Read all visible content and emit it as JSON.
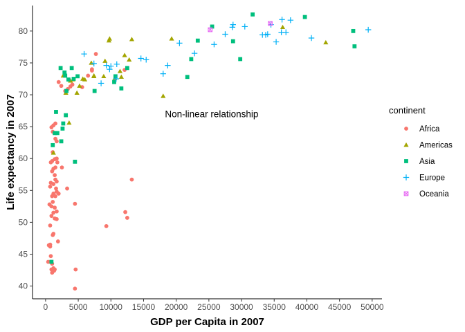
{
  "chart_data": {
    "type": "scatter",
    "xlabel": "GDP per Capita in 2007",
    "ylabel": "Life expectancy in 2007",
    "xlim": [
      -2000,
      51500
    ],
    "ylim": [
      38,
      84
    ],
    "xticks": [
      0,
      5000,
      10000,
      15000,
      20000,
      25000,
      30000,
      35000,
      40000,
      45000,
      50000
    ],
    "yticks": [
      40,
      45,
      50,
      55,
      60,
      65,
      70,
      75,
      80
    ],
    "grid": false,
    "legend": {
      "title": "continent",
      "placement": "right"
    },
    "annotations": [
      {
        "text": "Non-linear relationship",
        "x": 17800,
        "y": 67
      }
    ],
    "series": [
      {
        "name": "Africa",
        "shape": "circle",
        "color": "#F8766D",
        "points": [
          [
            1400,
            42.6
          ],
          [
            1000,
            43.5
          ],
          [
            400,
            43.8
          ],
          [
            500,
            46.4
          ],
          [
            700,
            46.2
          ],
          [
            700,
            46.5
          ],
          [
            1200,
            42.8
          ],
          [
            4600,
            42.6
          ],
          [
            4500,
            39.6
          ],
          [
            1000,
            42.1
          ],
          [
            1100,
            42.4
          ],
          [
            900,
            42.6
          ],
          [
            1300,
            42.4
          ],
          [
            800,
            44.7
          ],
          [
            1900,
            47.0
          ],
          [
            1100,
            48.0
          ],
          [
            1200,
            48.2
          ],
          [
            700,
            49.5
          ],
          [
            1400,
            50.6
          ],
          [
            1700,
            50.5
          ],
          [
            900,
            51.0
          ],
          [
            1200,
            51.5
          ],
          [
            1700,
            51.7
          ],
          [
            600,
            52.8
          ],
          [
            900,
            52.5
          ],
          [
            4500,
            52.9
          ],
          [
            12200,
            51.6
          ],
          [
            12500,
            50.7
          ],
          [
            9300,
            49.4
          ],
          [
            1000,
            54.1
          ],
          [
            1200,
            54.5
          ],
          [
            1500,
            54.1
          ],
          [
            1700,
            54.8
          ],
          [
            1600,
            55.3
          ],
          [
            2000,
            54.5
          ],
          [
            3300,
            55.3
          ],
          [
            1400,
            52.3
          ],
          [
            1100,
            53.2
          ],
          [
            13200,
            56.7
          ],
          [
            700,
            55.6
          ],
          [
            800,
            56.2
          ],
          [
            1200,
            56.0
          ],
          [
            1500,
            56.7
          ],
          [
            1700,
            56.4
          ],
          [
            1400,
            57.4
          ],
          [
            1000,
            58.0
          ],
          [
            1200,
            58.4
          ],
          [
            1500,
            58.6
          ],
          [
            2500,
            58.6
          ],
          [
            1800,
            59.4
          ],
          [
            800,
            59.4
          ],
          [
            1000,
            59.6
          ],
          [
            1400,
            59.9
          ],
          [
            1700,
            60.0
          ],
          [
            1100,
            61.0
          ],
          [
            1500,
            63.1
          ],
          [
            1700,
            62.7
          ],
          [
            1100,
            64.2
          ],
          [
            1200,
            65.2
          ],
          [
            1500,
            65.5
          ],
          [
            900,
            64.9
          ],
          [
            2000,
            72.0
          ],
          [
            2400,
            71.4
          ],
          [
            3000,
            70.6
          ],
          [
            3400,
            70.9
          ],
          [
            3800,
            71.3
          ],
          [
            4100,
            71.6
          ],
          [
            5600,
            71.2
          ],
          [
            6500,
            73.0
          ],
          [
            7100,
            74.0
          ],
          [
            7100,
            73.8
          ],
          [
            7700,
            76.4
          ],
          [
            12100,
            73.9
          ]
        ]
      },
      {
        "name": "Americas",
        "shape": "triangle",
        "color": "#A3A500",
        "points": [
          [
            1200,
            60.9
          ],
          [
            3600,
            65.6
          ],
          [
            2700,
            73.0
          ],
          [
            3100,
            70.3
          ],
          [
            3800,
            72.2
          ],
          [
            4200,
            72.4
          ],
          [
            4800,
            70.3
          ],
          [
            5200,
            71.4
          ],
          [
            5700,
            72.5
          ],
          [
            6000,
            72.4
          ],
          [
            7000,
            75.0
          ],
          [
            7400,
            72.9
          ],
          [
            7400,
            73.0
          ],
          [
            8900,
            72.9
          ],
          [
            9100,
            75.3
          ],
          [
            9700,
            78.5
          ],
          [
            9800,
            78.8
          ],
          [
            10600,
            72.6
          ],
          [
            11400,
            73.7
          ],
          [
            11600,
            72.8
          ],
          [
            12100,
            76.2
          ],
          [
            12800,
            75.5
          ],
          [
            13200,
            78.7
          ],
          [
            18000,
            69.8
          ],
          [
            19300,
            78.8
          ],
          [
            36300,
            80.6
          ],
          [
            42900,
            78.2
          ]
        ]
      },
      {
        "name": "Asia",
        "shape": "square",
        "color": "#00BF7D",
        "points": [
          [
            900,
            43.8
          ],
          [
            1100,
            62.1
          ],
          [
            1400,
            64.0
          ],
          [
            1600,
            67.3
          ],
          [
            1800,
            64.0
          ],
          [
            2400,
            62.7
          ],
          [
            2600,
            64.7
          ],
          [
            2700,
            65.5
          ],
          [
            3100,
            66.8
          ],
          [
            2300,
            74.2
          ],
          [
            2900,
            73.5
          ],
          [
            3000,
            73.0
          ],
          [
            3200,
            70.6
          ],
          [
            3500,
            72.4
          ],
          [
            4000,
            74.2
          ],
          [
            4300,
            72.5
          ],
          [
            4500,
            59.5
          ],
          [
            4900,
            72.9
          ],
          [
            7500,
            70.6
          ],
          [
            10500,
            72.0
          ],
          [
            10700,
            72.9
          ],
          [
            11600,
            71.0
          ],
          [
            12500,
            74.2
          ],
          [
            21700,
            72.8
          ],
          [
            22300,
            75.6
          ],
          [
            23300,
            78.5
          ],
          [
            25500,
            80.7
          ],
          [
            28700,
            78.4
          ],
          [
            29800,
            75.6
          ],
          [
            31700,
            82.6
          ],
          [
            39700,
            82.2
          ],
          [
            47100,
            80.0
          ],
          [
            47300,
            77.6
          ]
        ]
      },
      {
        "name": "Europe",
        "shape": "plus",
        "color": "#00B0F6",
        "points": [
          [
            5900,
            76.4
          ],
          [
            7400,
            74.9
          ],
          [
            8500,
            71.8
          ],
          [
            9300,
            74.6
          ],
          [
            9800,
            74.0
          ],
          [
            10000,
            74.5
          ],
          [
            10800,
            72.5
          ],
          [
            10900,
            74.8
          ],
          [
            14600,
            75.7
          ],
          [
            15400,
            75.5
          ],
          [
            18000,
            73.3
          ],
          [
            18700,
            74.6
          ],
          [
            20500,
            78.1
          ],
          [
            22800,
            76.5
          ],
          [
            25800,
            77.9
          ],
          [
            27500,
            79.5
          ],
          [
            28600,
            80.6
          ],
          [
            28700,
            81.0
          ],
          [
            30500,
            80.7
          ],
          [
            33200,
            79.4
          ],
          [
            33700,
            79.4
          ],
          [
            34000,
            79.5
          ],
          [
            34500,
            81.0
          ],
          [
            35300,
            78.3
          ],
          [
            36100,
            79.8
          ],
          [
            36200,
            81.8
          ],
          [
            36800,
            79.8
          ],
          [
            37500,
            81.7
          ],
          [
            40700,
            78.9
          ],
          [
            49400,
            80.2
          ]
        ]
      },
      {
        "name": "Oceania",
        "shape": "boxcross",
        "color": "#E76BF3",
        "points": [
          [
            25200,
            80.2
          ],
          [
            34400,
            81.2
          ]
        ]
      }
    ]
  }
}
